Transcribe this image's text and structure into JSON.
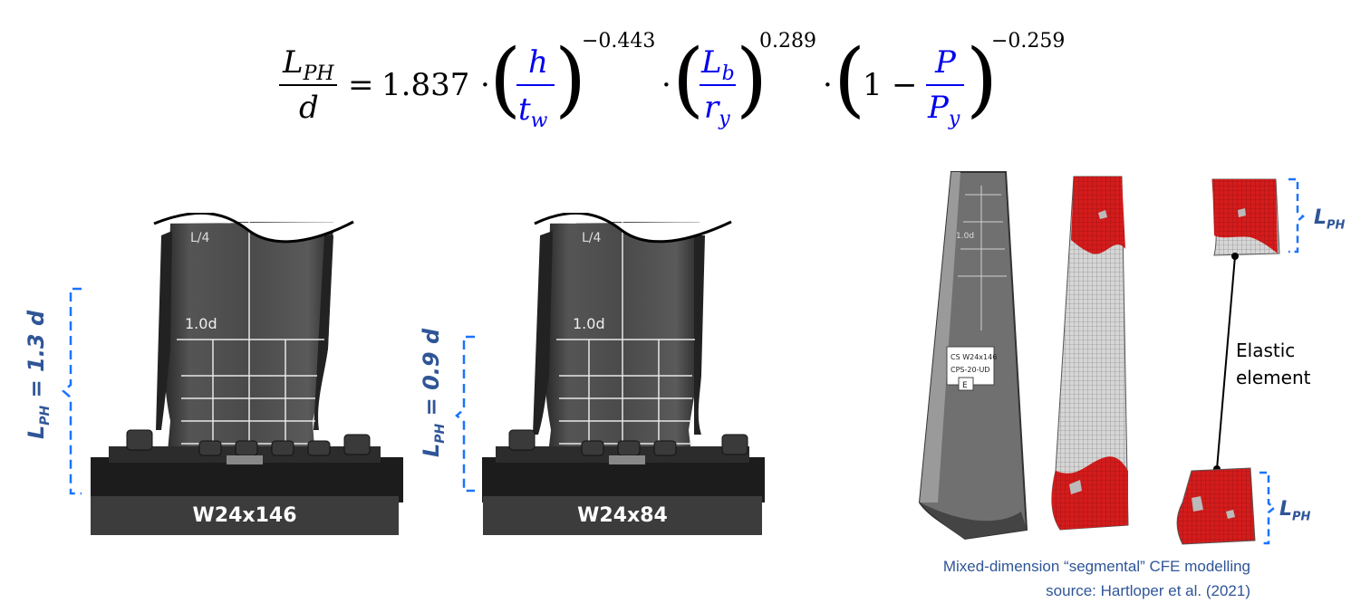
{
  "equation": {
    "lhs_numerator": "L",
    "lhs_numerator_sub": "PH",
    "lhs_denominator": "d",
    "equals": "=",
    "coefficient": "1.837",
    "dot": "·",
    "term1": {
      "numerator": "h",
      "denominator": "t",
      "denominator_sub": "w",
      "exponent": "−0.443"
    },
    "term2": {
      "numerator": "L",
      "numerator_sub": "b",
      "denominator": "r",
      "denominator_sub": "y",
      "exponent": "0.289"
    },
    "term3": {
      "one": "1",
      "minus": "−",
      "numerator": "P",
      "denominator": "P",
      "denominator_sub": "y",
      "exponent": "−0.259"
    }
  },
  "specimens": [
    {
      "name": "W24x146",
      "lph_label": "L",
      "lph_sub": "PH",
      "lph_value": " = 1.3 d",
      "gauge_top": "L/4",
      "gauge_mid": "1.0d"
    },
    {
      "name": "W24x84",
      "lph_label": "L",
      "lph_sub": "PH",
      "lph_value": " = 0.9 d",
      "gauge_top": "L/4",
      "gauge_mid": "1.0d"
    }
  ],
  "model": {
    "tag_line1": "CS  W24x146",
    "tag_line2": "CPS-20-UD",
    "tag_line3": "E",
    "gauge_mid": "1.0d",
    "lph_label": "L",
    "lph_sub": "PH",
    "elastic_line1": "Elastic",
    "elastic_line2": "element"
  },
  "caption": {
    "line1": "Mixed-dimension “segmental” CFE modelling",
    "line2": "source: Hartloper et al. (2021)"
  },
  "colors": {
    "accent_blue": "#2f5597",
    "equation_blue": "#0000ee",
    "bracket_blue": "#1a73ff",
    "fe_red": "#d41c1c",
    "base_dark": "#3c3c3c"
  }
}
